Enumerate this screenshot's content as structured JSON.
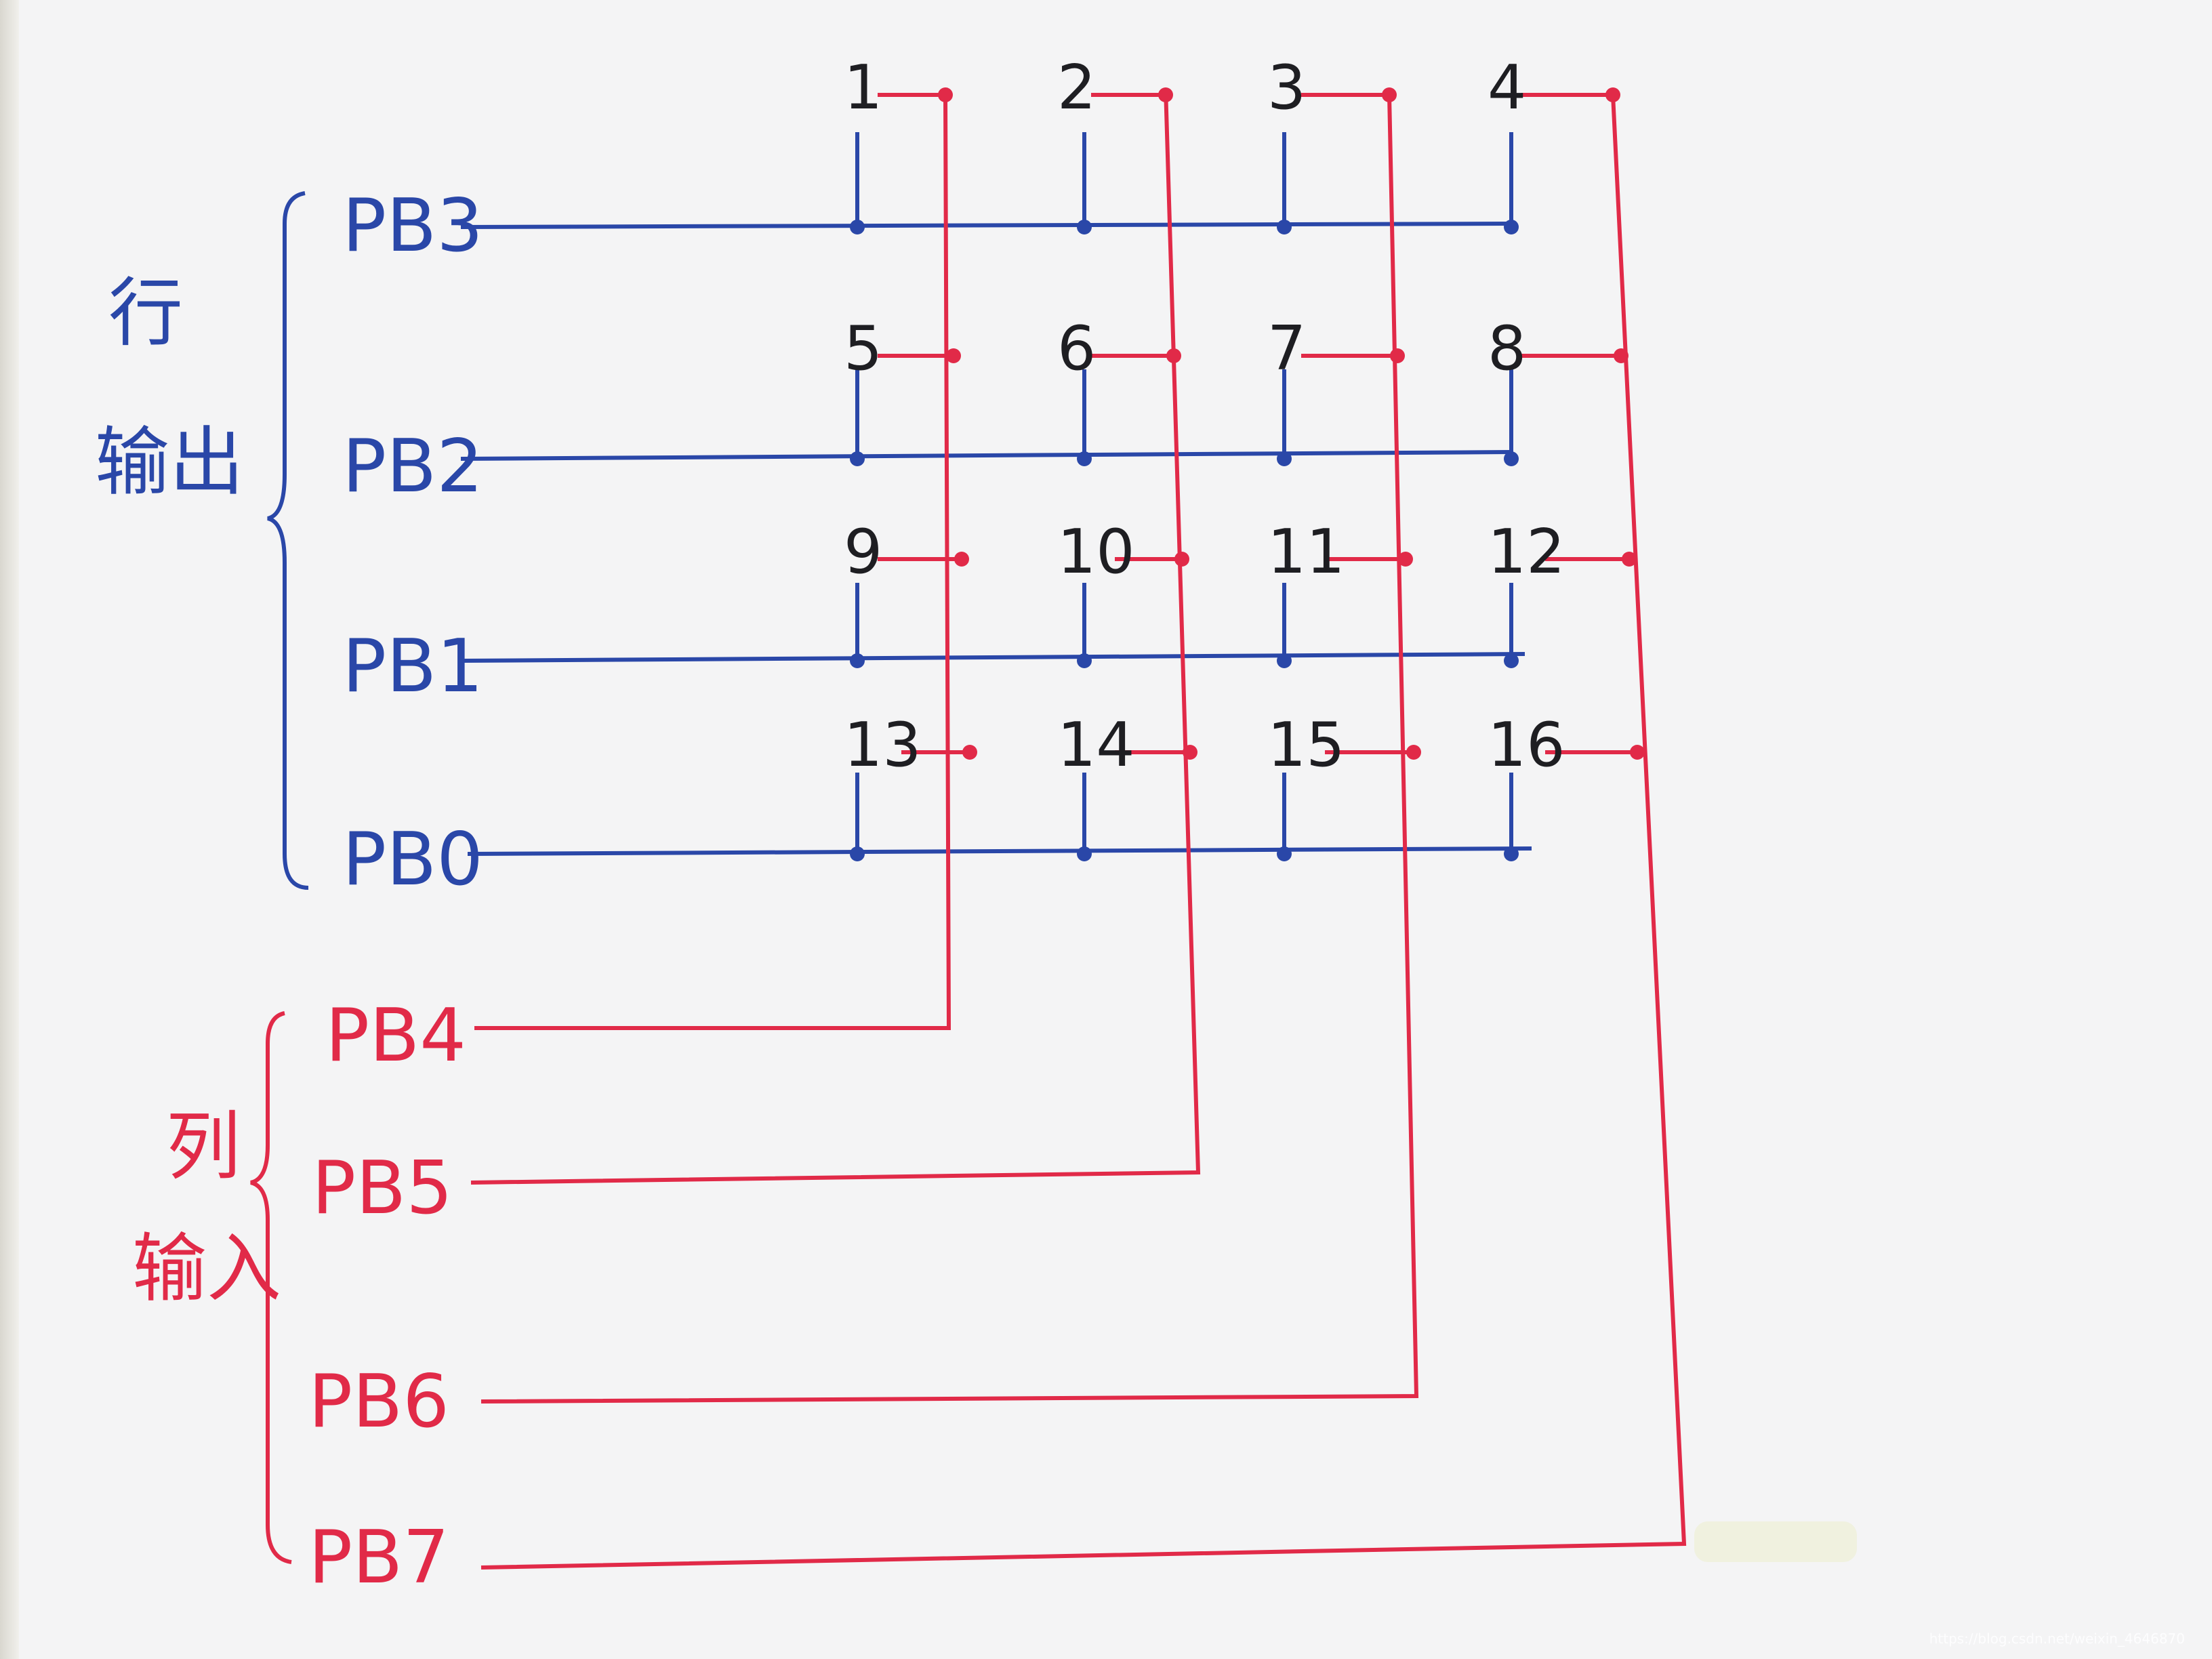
{
  "row_group": {
    "label_line1": "行",
    "label_line2": "输出",
    "color": "#2a47a8",
    "pins": [
      "PB3",
      "PB2",
      "PB1",
      "PB0"
    ]
  },
  "col_group": {
    "label_line1": "列",
    "label_line2": "输入",
    "color": "#e12a48",
    "pins": [
      "PB4",
      "PB5",
      "PB6",
      "PB7"
    ]
  },
  "keys": [
    "1",
    "2",
    "3",
    "4",
    "5",
    "6",
    "7",
    "8",
    "9",
    "10",
    "11",
    "12",
    "13",
    "14",
    "15",
    "16"
  ],
  "watermark": "https://blog.csdn.net/weixin_4646870"
}
